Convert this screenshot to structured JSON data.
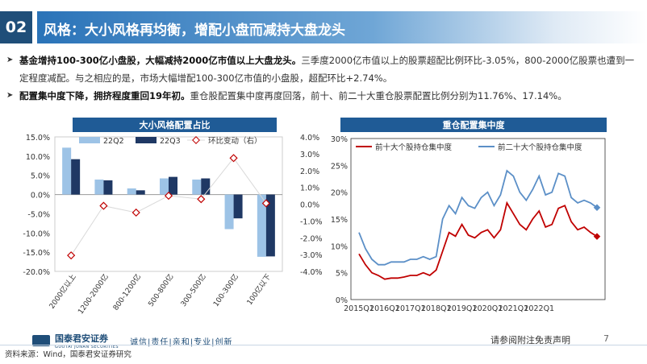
{
  "header": {
    "section_number": "02",
    "title": "风格：大小风格再均衡，增配小盘而减持大盘龙头"
  },
  "bullets": [
    {
      "bold": "基金增持100-300亿小盘股，大幅减持2000亿市值以上大盘龙头。",
      "rest": "三季度2000亿市值以上的股票超配比例环比-3.05%，800-2000亿股票也遭到一定程度减配。与之相应的是，市场大幅增配100-300亿市值的小盘股，超配环比+2.74%。"
    },
    {
      "bold": "配置集中度下降，拥挤程度重回19年初。",
      "rest": "重仓股配置集中度再度回落，前十、前二十大重仓股票配置比例分别为11.76%、17.14%。"
    }
  ],
  "footer": {
    "logo_text": "国泰君安证券",
    "logo_subtext": "GUOTAI JUNAN SECURITIES",
    "motto": "诚信|责任|亲和|专业|创新",
    "disclaimer": "请参阅附注免责声明",
    "page_number": "7",
    "source": "资料来源：Wind，国泰君安证券研究"
  },
  "colors": {
    "header_dark": "#1f4e79",
    "bar_22q2": "#9dc3e6",
    "bar_22q3": "#1f3864",
    "change_line": "#d9d9d9",
    "change_marker": "#c00000",
    "top10_line": "#c00000",
    "top20_line": "#5b8fc7"
  },
  "chart_data": [
    {
      "type": "bar",
      "title": "大小风格配置占比",
      "categories": [
        "2000亿以上",
        "1200-2000亿",
        "800-1200亿",
        "500-800亿",
        "300-500亿",
        "100-300亿",
        "100亿以下"
      ],
      "series": [
        {
          "name": "22Q2",
          "values": [
            12.2,
            3.9,
            1.6,
            4.2,
            3.9,
            -9.0,
            -16.2
          ]
        },
        {
          "name": "22Q3",
          "values": [
            9.2,
            3.7,
            1.1,
            4.6,
            4.2,
            -6.2,
            -16.1
          ]
        },
        {
          "name": "环比变动（右）",
          "axis": "right",
          "values": [
            -3.05,
            -0.1,
            -0.5,
            0.5,
            0.3,
            2.74,
            0.05
          ]
        }
      ],
      "ylim_left": [
        -20,
        15
      ],
      "yticks_left": [
        "15.0%",
        "10.0%",
        "5.0%",
        "0.0%",
        "-5.0%",
        "-10.0%",
        "-15.0%",
        "-20.0%"
      ],
      "ylim_right": [
        -4,
        4
      ],
      "yticks_right": [
        "4.0%",
        "3.0%",
        "2.0%",
        "1.0%",
        "0.0%",
        "-1.0%",
        "-2.0%",
        "-3.0%",
        "-4.0%"
      ]
    },
    {
      "type": "line",
      "title": "重仓配置集中度",
      "series": [
        {
          "name": "前十大个股持仓集中度",
          "values": [
            8.5,
            6.5,
            5.0,
            4.5,
            3.8,
            4.0,
            4.0,
            4.2,
            4.5,
            4.5,
            5.0,
            4.5,
            5.5,
            9.0,
            12.5,
            11.8,
            14.0,
            12.0,
            11.5,
            12.5,
            13.0,
            11.5,
            13.0,
            18.0,
            16.0,
            14.0,
            13.0,
            15.0,
            16.5,
            13.5,
            14.0,
            17.0,
            17.5,
            14.5,
            13.0,
            13.5,
            12.5,
            11.76
          ]
        },
        {
          "name": "前二十大个股持仓集中度",
          "values": [
            12.5,
            9.5,
            7.5,
            6.5,
            6.5,
            7.0,
            7.0,
            7.0,
            7.5,
            7.5,
            8.0,
            7.5,
            8.0,
            15.0,
            17.5,
            16.0,
            19.0,
            17.5,
            17.0,
            19.0,
            20.0,
            17.5,
            19.5,
            24.0,
            23.0,
            20.0,
            18.5,
            20.5,
            23.0,
            19.5,
            20.0,
            23.5,
            23.0,
            19.0,
            18.0,
            18.5,
            18.0,
            17.14
          ]
        }
      ],
      "xtick_labels": [
        "2015Q1",
        "2016Q1",
        "2017Q1",
        "2018Q1",
        "2019Q1",
        "2020Q1",
        "2021Q1",
        "2022Q1"
      ],
      "xtick_index": [
        0,
        4,
        8,
        12,
        16,
        20,
        24,
        28
      ],
      "ylim": [
        0,
        30
      ],
      "yticks": [
        "30%",
        "25%",
        "20%",
        "15%",
        "10%",
        "5%",
        "0%"
      ]
    }
  ]
}
